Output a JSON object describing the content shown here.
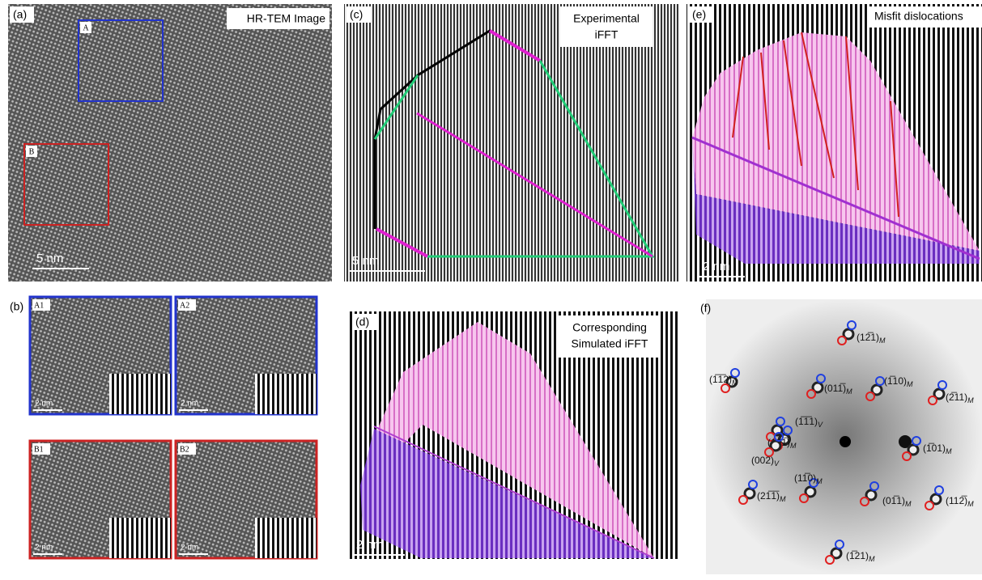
{
  "panels": {
    "a": {
      "label": "(a)",
      "title": "HR-TEM Image",
      "boxes": [
        "A",
        "B"
      ],
      "scale": "5 nm"
    },
    "b": {
      "label": "(b)",
      "subpanels": [
        {
          "label": "A1",
          "scale": "2 nm"
        },
        {
          "label": "A2",
          "scale": "2 nm"
        },
        {
          "label": "B1",
          "scale": "2 nm"
        },
        {
          "label": "B2",
          "scale": "2 nm"
        }
      ]
    },
    "c": {
      "label": "(c)",
      "title": [
        "Experimental",
        "iFFT"
      ],
      "scale": "5 nm"
    },
    "d": {
      "label": "(d)",
      "title": [
        "Corresponding",
        "Simulated iFFT"
      ],
      "scale": "2 nm"
    },
    "e": {
      "label": "(e)",
      "title": "Misfit dislocations",
      "scale": "2 nm"
    },
    "f": {
      "label": "(f)",
      "spots": [
        {
          "index": "(12̅1)",
          "phase": "M"
        },
        {
          "index": "(1̅1̅2)",
          "phase": "M"
        },
        {
          "index": "(011̅)",
          "phase": "M"
        },
        {
          "index": "(1̅10)",
          "phase": "M"
        },
        {
          "index": "(2̅11)",
          "phase": "M"
        },
        {
          "index": "(1̅1̅1)",
          "phase": "V"
        },
        {
          "index": "(101̅)",
          "phase": "M"
        },
        {
          "index": "(002)",
          "phase": "V"
        },
        {
          "index": "(1̅01)",
          "phase": "M"
        },
        {
          "index": "(21̅1̅)",
          "phase": "M"
        },
        {
          "index": "(11̅0)",
          "phase": "M"
        },
        {
          "index": "(01̅1)",
          "phase": "M"
        },
        {
          "index": "(112̅)",
          "phase": "M"
        },
        {
          "index": "(1̅21)",
          "phase": "M"
        }
      ]
    }
  }
}
